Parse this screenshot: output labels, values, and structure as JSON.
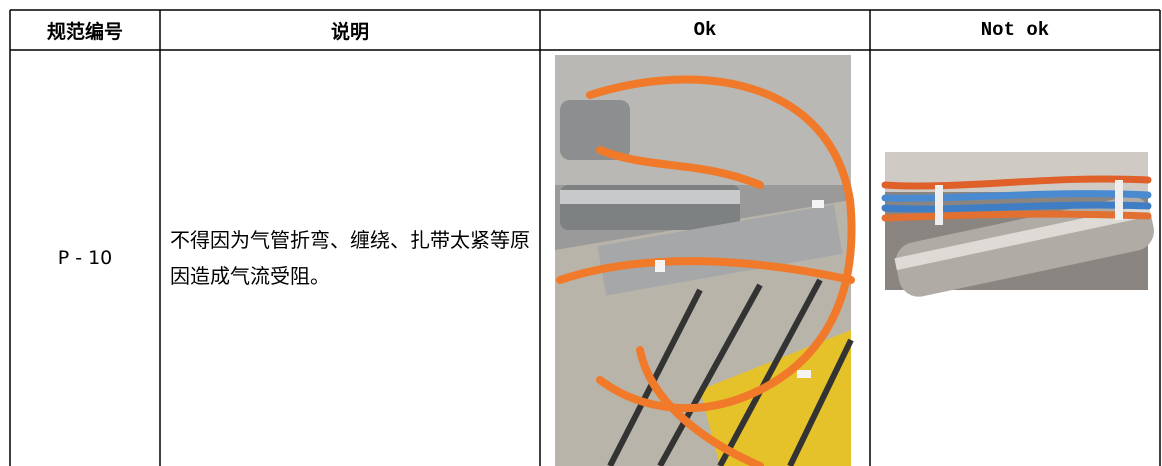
{
  "table": {
    "header": [
      "规范编号",
      "说明",
      "Ok",
      "Not ok"
    ],
    "rows": [
      [
        "P - 10",
        "不得因为气管折弯、缠绕、扎带太紧等原因造成气流受阻。"
      ]
    ]
  }
}
